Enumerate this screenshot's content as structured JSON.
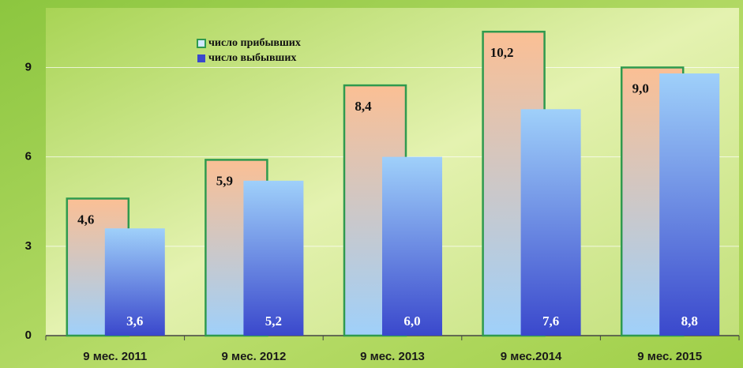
{
  "chart_data": {
    "type": "bar",
    "categories": [
      "9 мес. 2011",
      "9 мес. 2012",
      "9 мес. 2013",
      "9 мес.2014",
      "9 мес. 2015"
    ],
    "series": [
      {
        "name": "число прибывших",
        "color": "#fbbf94",
        "values": [
          4.6,
          5.9,
          8.4,
          10.2,
          9.0
        ],
        "value_labels": [
          "4,6",
          "5,9",
          "8,4",
          "10,2",
          "9,0"
        ]
      },
      {
        "name": "число выбывших",
        "color": "#3a48cc",
        "values": [
          3.6,
          5.2,
          6.0,
          7.6,
          8.8
        ],
        "value_labels": [
          "3,6",
          "5,2",
          "6,0",
          "7,6",
          "8,8"
        ]
      }
    ],
    "ylim": [
      0,
      11
    ],
    "yticks": [
      0,
      3,
      6,
      9
    ],
    "grid": true,
    "legend": "top-left"
  }
}
